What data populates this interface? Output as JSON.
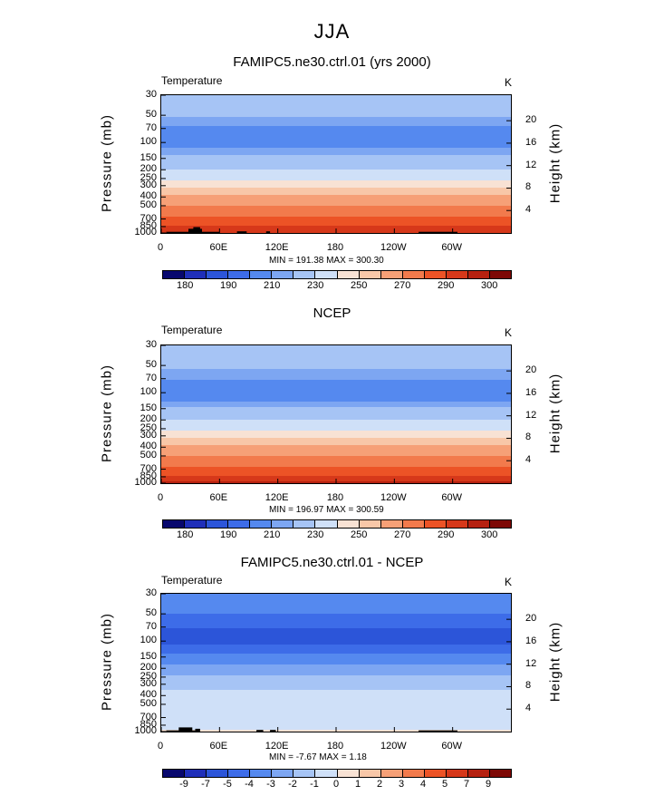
{
  "main_title": "JJA",
  "colors": {
    "abs": [
      "#08086e",
      "#1f2fb9",
      "#2c55d9",
      "#3d6ce8",
      "#5589ef",
      "#7da6f2",
      "#a6c4f5",
      "#cfe0f8",
      "#f8e2d4",
      "#f8c7a8",
      "#f6a077",
      "#f27a4c",
      "#ec5326",
      "#d6381a",
      "#b52110",
      "#7d0805"
    ],
    "diff": [
      "#08086e",
      "#1f2fb9",
      "#2c55d9",
      "#3d6ce8",
      "#5589ef",
      "#7da6f2",
      "#a6c4f5",
      "#cfe0f8",
      "#f8e2d4",
      "#f8c7a8",
      "#f6a077",
      "#f27a4c",
      "#ec5326",
      "#d6381a",
      "#b52110",
      "#7d0805"
    ]
  },
  "chart_data": [
    {
      "type": "heatmap",
      "title": "FAMIPC5.ne30.ctrl.01 (yrs 2000)",
      "variable": "Temperature",
      "units": "K",
      "ylabel": "Pressure  (mb)",
      "ylabel_right": "Height  (km)",
      "xlabel": "",
      "x_ticks": [
        "0",
        "60E",
        "120E",
        "180",
        "120W",
        "60W"
      ],
      "x_tick_values": [
        0,
        60,
        120,
        180,
        240,
        300
      ],
      "xlim": [
        0,
        360
      ],
      "y_ticks": [
        "30",
        "50",
        "70",
        "100",
        "150",
        "200",
        "250",
        "300",
        "400",
        "500",
        "700",
        "850",
        "1000"
      ],
      "y_tick_values": [
        30,
        50,
        70,
        100,
        150,
        200,
        250,
        300,
        400,
        500,
        700,
        850,
        1000
      ],
      "ylim": [
        1000,
        30
      ],
      "height_ticks": [
        "20",
        "16",
        "12",
        "8",
        "4"
      ],
      "height_tick_values": [
        20,
        16,
        12,
        8,
        4
      ],
      "min_max_text": "MIN =  191.38   MAX =  300.30",
      "min": 191.38,
      "max": 300.3,
      "colorbar_labels": [
        "180",
        "190",
        "210",
        "230",
        "250",
        "270",
        "290",
        "300"
      ],
      "profile": [
        {
          "p": 30,
          "v": 217
        },
        {
          "p": 45,
          "v": 213
        },
        {
          "p": 60,
          "v": 207
        },
        {
          "p": 75,
          "v": 201
        },
        {
          "p": 100,
          "v": 201
        },
        {
          "p": 120,
          "v": 206
        },
        {
          "p": 150,
          "v": 212
        },
        {
          "p": 190,
          "v": 218
        },
        {
          "p": 230,
          "v": 224
        },
        {
          "p": 280,
          "v": 232
        },
        {
          "p": 330,
          "v": 244
        },
        {
          "p": 380,
          "v": 250
        },
        {
          "p": 450,
          "v": 256
        },
        {
          "p": 520,
          "v": 262
        },
        {
          "p": 620,
          "v": 268
        },
        {
          "p": 720,
          "v": 274
        },
        {
          "p": 800,
          "v": 278
        },
        {
          "p": 880,
          "v": 282
        },
        {
          "p": 960,
          "v": 287
        },
        {
          "p": 1000,
          "v": 292
        }
      ],
      "topography": [
        {
          "lon0": 5,
          "lon1": 60,
          "p": 970
        },
        {
          "lon0": 28,
          "lon1": 42,
          "p": 900
        },
        {
          "lon0": 33,
          "lon1": 40,
          "p": 860
        },
        {
          "lon0": 78,
          "lon1": 88,
          "p": 960
        },
        {
          "lon0": 108,
          "lon1": 112,
          "p": 960
        },
        {
          "lon0": 265,
          "lon1": 305,
          "p": 970
        }
      ]
    },
    {
      "type": "heatmap",
      "title": "NCEP",
      "variable": "Temperature",
      "units": "K",
      "ylabel": "Pressure  (mb)",
      "ylabel_right": "Height  (km)",
      "xlabel": "",
      "x_ticks": [
        "0",
        "60E",
        "120E",
        "180",
        "120W",
        "60W"
      ],
      "x_tick_values": [
        0,
        60,
        120,
        180,
        240,
        300
      ],
      "xlim": [
        0,
        360
      ],
      "y_ticks": [
        "30",
        "50",
        "70",
        "100",
        "150",
        "200",
        "250",
        "300",
        "400",
        "500",
        "700",
        "850",
        "1000"
      ],
      "y_tick_values": [
        30,
        50,
        70,
        100,
        150,
        200,
        250,
        300,
        400,
        500,
        700,
        850,
        1000
      ],
      "ylim": [
        1000,
        30
      ],
      "height_ticks": [
        "20",
        "16",
        "12",
        "8",
        "4"
      ],
      "height_tick_values": [
        20,
        16,
        12,
        8,
        4
      ],
      "min_max_text": "MIN =  196.97   MAX =  300.59",
      "min": 196.97,
      "max": 300.59,
      "colorbar_labels": [
        "180",
        "190",
        "210",
        "230",
        "250",
        "270",
        "290",
        "300"
      ],
      "profile": [
        {
          "p": 30,
          "v": 217
        },
        {
          "p": 45,
          "v": 213
        },
        {
          "p": 60,
          "v": 208
        },
        {
          "p": 80,
          "v": 203
        },
        {
          "p": 100,
          "v": 202
        },
        {
          "p": 120,
          "v": 204
        },
        {
          "p": 150,
          "v": 212
        },
        {
          "p": 190,
          "v": 218
        },
        {
          "p": 230,
          "v": 224
        },
        {
          "p": 280,
          "v": 232
        },
        {
          "p": 330,
          "v": 244
        },
        {
          "p": 380,
          "v": 250
        },
        {
          "p": 450,
          "v": 256
        },
        {
          "p": 520,
          "v": 262
        },
        {
          "p": 620,
          "v": 268
        },
        {
          "p": 720,
          "v": 274
        },
        {
          "p": 800,
          "v": 278
        },
        {
          "p": 880,
          "v": 283
        },
        {
          "p": 960,
          "v": 288
        },
        {
          "p": 1000,
          "v": 293
        }
      ],
      "topography": []
    },
    {
      "type": "heatmap",
      "title": "FAMIPC5.ne30.ctrl.01 - NCEP",
      "variable": "Temperature",
      "units": "K",
      "ylabel": "Pressure  (mb)",
      "ylabel_right": "Height  (km)",
      "xlabel": "",
      "x_ticks": [
        "0",
        "60E",
        "120E",
        "180",
        "120W",
        "60W"
      ],
      "x_tick_values": [
        0,
        60,
        120,
        180,
        240,
        300
      ],
      "xlim": [
        0,
        360
      ],
      "y_ticks": [
        "30",
        "50",
        "70",
        "100",
        "150",
        "200",
        "250",
        "300",
        "400",
        "500",
        "700",
        "850",
        "1000"
      ],
      "y_tick_values": [
        30,
        50,
        70,
        100,
        150,
        200,
        250,
        300,
        400,
        500,
        700,
        850,
        1000
      ],
      "ylim": [
        1000,
        30
      ],
      "height_ticks": [
        "20",
        "16",
        "12",
        "8",
        "4"
      ],
      "height_tick_values": [
        20,
        16,
        12,
        8,
        4
      ],
      "min_max_text": "MIN =   -7.67   MAX =    1.18",
      "min": -7.67,
      "max": 1.18,
      "colorbar_labels": [
        "-9",
        "-7",
        "-5",
        "-4",
        "-3",
        "-2",
        "-1",
        "0",
        "1",
        "2",
        "3",
        "4",
        "5",
        "7",
        "9"
      ],
      "profile": [
        {
          "p": 30,
          "v": -3.5
        },
        {
          "p": 45,
          "v": -3.8
        },
        {
          "p": 60,
          "v": -4.5
        },
        {
          "p": 80,
          "v": -5.2
        },
        {
          "p": 100,
          "v": -5.5
        },
        {
          "p": 130,
          "v": -4.3
        },
        {
          "p": 170,
          "v": -3.2
        },
        {
          "p": 210,
          "v": -2.5
        },
        {
          "p": 260,
          "v": -1.8
        },
        {
          "p": 320,
          "v": -1.3
        },
        {
          "p": 400,
          "v": -0.6
        },
        {
          "p": 500,
          "v": -0.6
        },
        {
          "p": 600,
          "v": -0.7
        },
        {
          "p": 700,
          "v": -0.8
        },
        {
          "p": 800,
          "v": -0.7
        },
        {
          "p": 900,
          "v": -0.5
        },
        {
          "p": 960,
          "v": 0.3
        },
        {
          "p": 1000,
          "v": 0.5
        }
      ],
      "topography": [
        {
          "lon0": 5,
          "lon1": 35,
          "p": 970
        },
        {
          "lon0": 18,
          "lon1": 32,
          "p": 900
        },
        {
          "lon0": 35,
          "lon1": 40,
          "p": 930
        },
        {
          "lon0": 98,
          "lon1": 105,
          "p": 960
        },
        {
          "lon0": 112,
          "lon1": 118,
          "p": 960
        },
        {
          "lon0": 265,
          "lon1": 305,
          "p": 970
        }
      ]
    }
  ]
}
